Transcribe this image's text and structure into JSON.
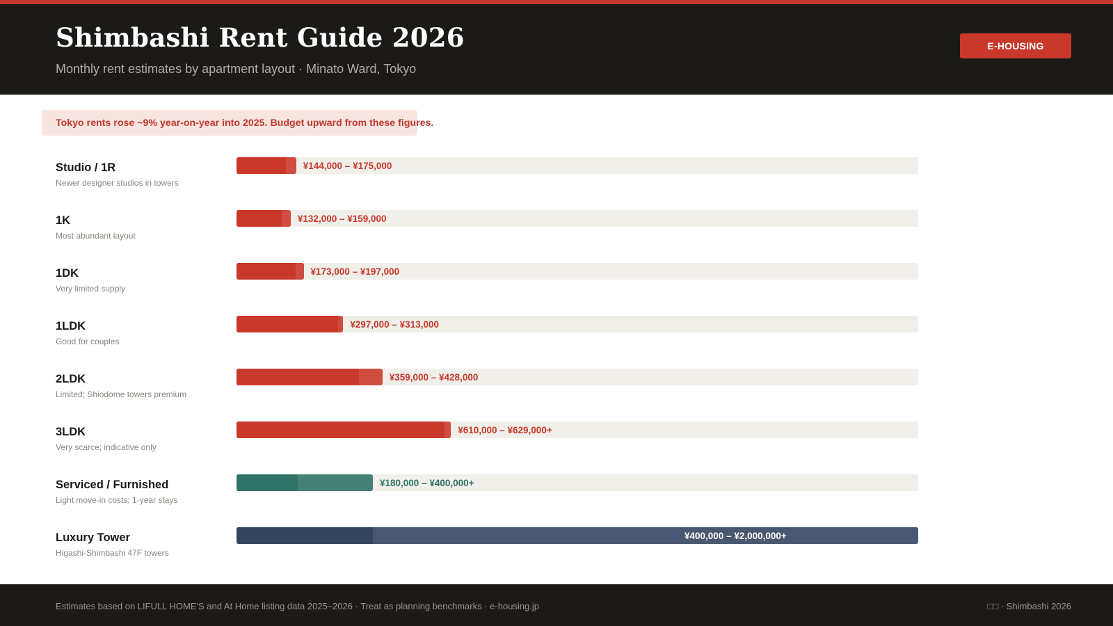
{
  "header": {
    "title": "Shimbashi Rent Guide 2026",
    "subtitle": "Monthly rent estimates by apartment layout · Minato Ward, Tokyo",
    "brand_label": "E-HOUSING"
  },
  "notice": "Tokyo rents rose ~9% year-on-year into 2025. Budget upward from these figures.",
  "colors": {
    "accent": "#c8392b",
    "serviced": "#2f7466",
    "luxury": "#344560",
    "track": "#f1efea"
  },
  "chart_data": {
    "type": "bar",
    "orientation": "horizontal",
    "title": "",
    "xlabel": "",
    "ylabel": "",
    "xlim": [
      0,
      2000000
    ],
    "unit": "¥ per month",
    "grid": false,
    "categories": [
      "Studio / 1R",
      "1K",
      "1DK",
      "1LDK",
      "2LDK",
      "3LDK",
      "Serviced / Furnished",
      "Luxury Tower"
    ],
    "rows": [
      {
        "label": "Studio / 1R",
        "note": "Newer designer studios in towers",
        "low": 144000,
        "high": 175000,
        "range_label": "¥144,000 – ¥175,000",
        "color": "#c8392b"
      },
      {
        "label": "1K",
        "note": "Most abundant layout",
        "low": 132000,
        "high": 159000,
        "range_label": "¥132,000 – ¥159,000",
        "color": "#c8392b"
      },
      {
        "label": "1DK",
        "note": "Very limited supply",
        "low": 173000,
        "high": 197000,
        "range_label": "¥173,000 – ¥197,000",
        "color": "#c8392b"
      },
      {
        "label": "1LDK",
        "note": "Good for couples",
        "low": 297000,
        "high": 313000,
        "range_label": "¥297,000 – ¥313,000",
        "color": "#c8392b"
      },
      {
        "label": "2LDK",
        "note": "Limited; Shiodome towers premium",
        "low": 359000,
        "high": 428000,
        "range_label": "¥359,000 – ¥428,000",
        "color": "#c8392b"
      },
      {
        "label": "3LDK",
        "note": "Very scarce; indicative only",
        "low": 610000,
        "high": 629000,
        "range_label": "¥610,000 – ¥629,000+",
        "color": "#c8392b"
      },
      {
        "label": "Serviced / Furnished",
        "note": "Light move-in costs; 1-year stays",
        "low": 180000,
        "high": 400000,
        "range_label": "¥180,000 – ¥400,000+",
        "color": "#2f7466"
      },
      {
        "label": "Luxury Tower",
        "note": "Higashi-Shimbashi 47F towers",
        "low": 400000,
        "high": 2000000,
        "range_label": "¥400,000 – ¥2,000,000+",
        "color": "#344560"
      }
    ]
  },
  "footer": {
    "source": "Estimates based on LIFULL HOME'S and At Home listing data 2025–2026 · Treat as planning benchmarks · e-housing.jp",
    "right": "□□ · Shimbashi 2026"
  }
}
